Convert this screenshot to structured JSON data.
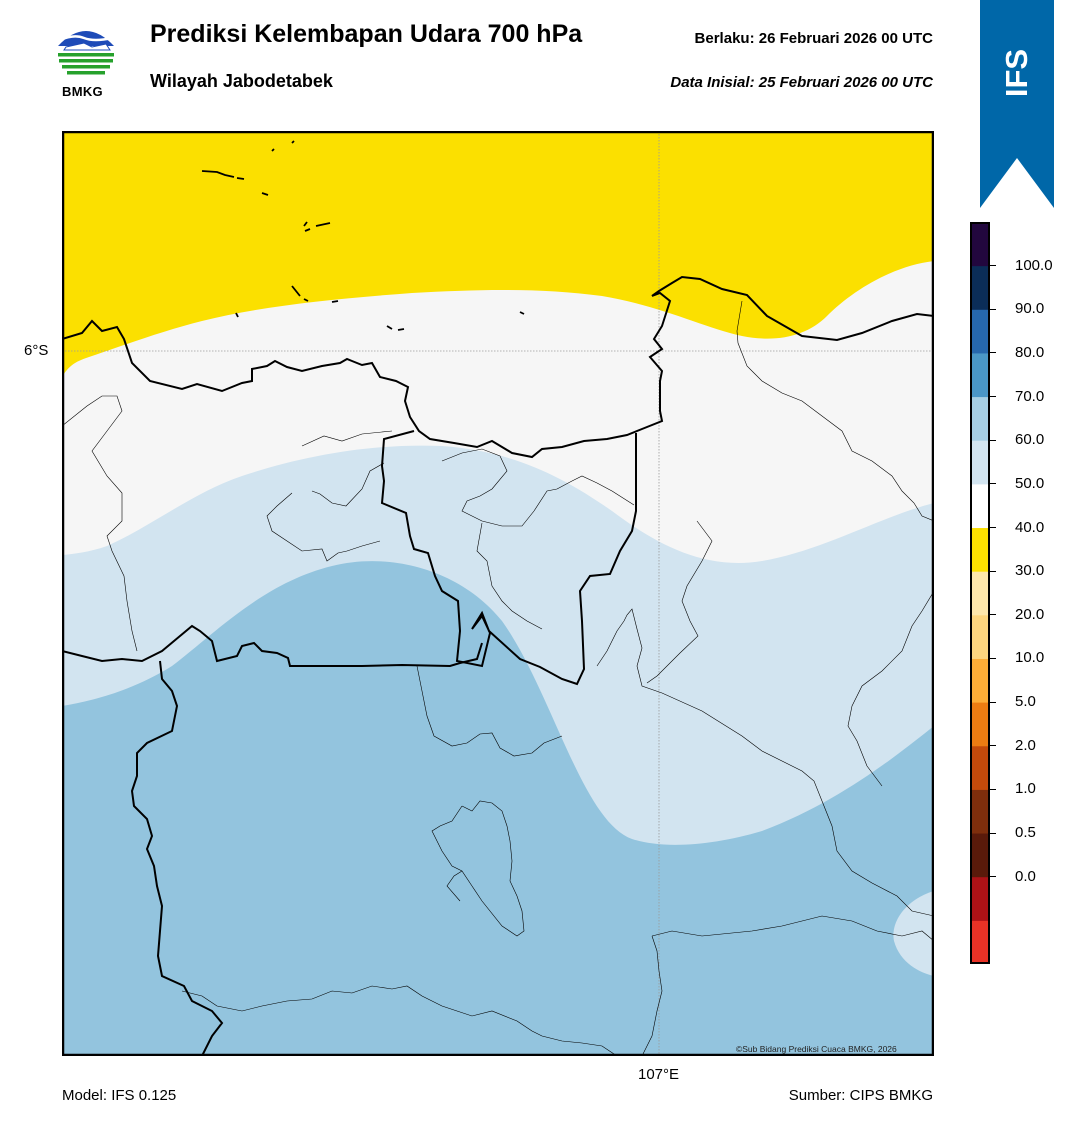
{
  "header": {
    "title": "Prediksi Kelembapan Udara 700 hPa",
    "subtitle": "Wilayah Jabodetabek",
    "valid_time": "Berlaku:  26 Februari 2026 00 UTC",
    "init_time": "Data Inisial:  25 Februari 2026 00 UTC",
    "logo_text": "BMKG"
  },
  "badge": {
    "text": "IFS",
    "color": "#0067a8"
  },
  "map": {
    "lat_label": "6°S",
    "lon_label": "107°E",
    "credit": "©Sub Bidang Prediksi Cuaca BMKG, 2026",
    "fill_colors": {
      "yellow_30_40": "#fbe000",
      "white_40_50": "#f6f6f6",
      "light_blue_50_60": "#d2e4f0",
      "blue_60_70": "#93c4de"
    }
  },
  "colorbar": {
    "labels": [
      "100.0",
      "90.0",
      "80.0",
      "70.0",
      "60.0",
      "50.0",
      "40.0",
      "30.0",
      "20.0",
      "10.0",
      "5.0",
      "2.0",
      "1.0",
      "0.5",
      "0.0"
    ],
    "colors": [
      "#e83226",
      "#ad1216",
      "#5a1a0a",
      "#7e2e0c",
      "#c34a0b",
      "#ec7c12",
      "#fcad37",
      "#fdd67e",
      "#fde7ab",
      "#fbe000",
      "#ffffff",
      "#d2e4f0",
      "#a6cfe4",
      "#4a97c7",
      "#2667ad",
      "#0b2d58",
      "#22073e"
    ]
  },
  "footer": {
    "model": "Model: IFS 0.125",
    "source": "Sumber: CIPS BMKG"
  }
}
